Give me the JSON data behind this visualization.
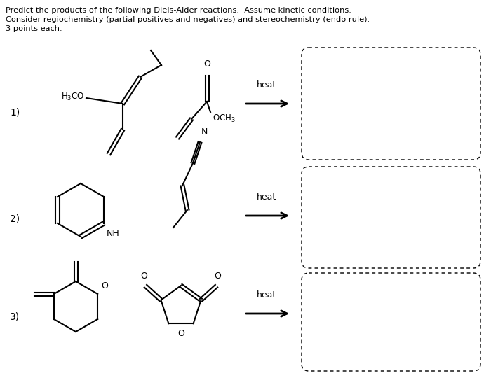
{
  "title_text": "Predict the products of the following Diels-Alder reactions.  Assume kinetic conditions.\nConsider regiochemistry (partial positives and negatives) and stereochemistry (endo rule).\n3 points each.",
  "bg_color": "#ffffff",
  "line_color": "#000000",
  "text_color": "#000000",
  "dashed_box_color": "#000000",
  "row_labels": [
    "1)",
    "2)",
    "3)"
  ],
  "heat_label": "heat",
  "arrow_color": "#000000",
  "fig_w": 7.0,
  "fig_h": 5.4,
  "dpi": 100
}
